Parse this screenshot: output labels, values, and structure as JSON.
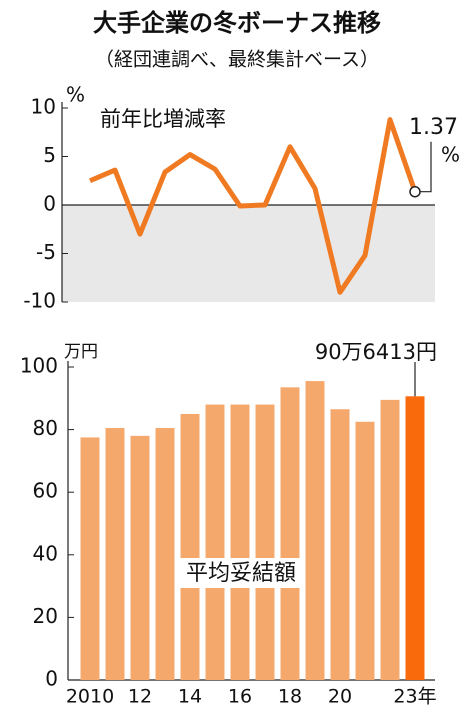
{
  "title": "大手企業の冬ボーナス推移",
  "subtitle": "（経団連調べ、最終集計ベース）",
  "chart_data": [
    {
      "type": "line",
      "annotation": "前年比増減率",
      "y_unit": "%",
      "series": [
        {
          "name": "前年比増減率",
          "color": "#f07a22",
          "values": [
            2.5,
            3.6,
            -3.0,
            3.4,
            5.2,
            3.7,
            -0.1,
            0,
            6.0,
            1.7,
            -9.0,
            -5.2,
            8.8,
            1.37
          ]
        }
      ],
      "ylim": [
        -10,
        10
      ],
      "yticks": [
        -10,
        -5,
        0,
        5,
        10
      ],
      "shade_negative": true
    },
    {
      "type": "bar",
      "annotation": "平均妥結額",
      "y_unit": "万円",
      "categories": [
        "2010",
        null,
        "12",
        null,
        "14",
        null,
        "16",
        null,
        "18",
        null,
        "20",
        null,
        null,
        "23年"
      ],
      "values": [
        77.5,
        80.5,
        78,
        80.5,
        85,
        88,
        88,
        88,
        93.5,
        95.5,
        86.5,
        82.5,
        89.5,
        90.6413
      ],
      "value_labels": [
        null,
        null,
        null,
        null,
        null,
        null,
        null,
        null,
        null,
        null,
        null,
        null,
        null,
        "90万6413円"
      ],
      "color": "#f5a86c",
      "highlight_color": "#f96a0d",
      "ylim": [
        0,
        100
      ],
      "yticks": [
        0,
        20,
        40,
        60,
        80,
        100
      ]
    }
  ]
}
